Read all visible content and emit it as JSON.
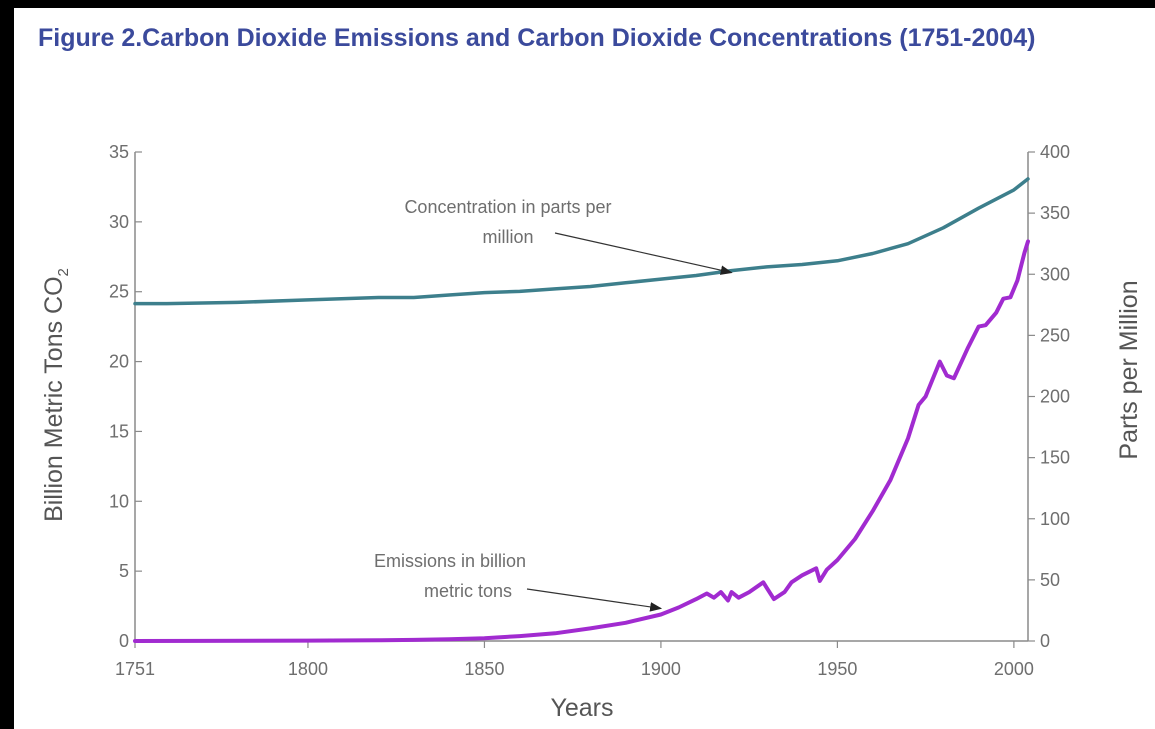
{
  "chart_data": {
    "type": "line",
    "title": "Figure 2.Carbon Dioxide Emissions and Carbon Dioxide Concentrations (1751-2004)",
    "xlabel": "Years",
    "ylabel_left": "Billion Metric Tons CO",
    "ylabel_left_subscript": "2",
    "ylabel_right": "Parts per Million",
    "xlim": [
      1751,
      2004
    ],
    "ylim_left": [
      0,
      35
    ],
    "ylim_right": [
      0,
      400
    ],
    "x_ticks": [
      1751,
      1800,
      1850,
      1900,
      1950,
      2000
    ],
    "y_left_ticks": [
      0,
      5,
      10,
      15,
      20,
      25,
      30,
      35
    ],
    "y_right_ticks": [
      0,
      50,
      100,
      150,
      200,
      250,
      300,
      350,
      400
    ],
    "grid": false,
    "colors": {
      "concentration": "#3d7f8c",
      "emissions": "#a12bd0",
      "title": "#3b4a9c"
    },
    "annotations": [
      {
        "lines": [
          "Concentration in parts per",
          "million"
        ],
        "target_series": "concentration",
        "target_x": 1920
      },
      {
        "lines": [
          "Emissions in billion",
          "metric tons"
        ],
        "target_series": "emissions",
        "target_x": 1900
      }
    ],
    "series": [
      {
        "key": "concentration",
        "axis": "right",
        "points": [
          [
            1751,
            276
          ],
          [
            1760,
            276
          ],
          [
            1780,
            277
          ],
          [
            1800,
            279
          ],
          [
            1820,
            281
          ],
          [
            1830,
            281
          ],
          [
            1840,
            283
          ],
          [
            1850,
            285
          ],
          [
            1860,
            286
          ],
          [
            1870,
            288
          ],
          [
            1880,
            290
          ],
          [
            1890,
            293
          ],
          [
            1900,
            296
          ],
          [
            1910,
            299
          ],
          [
            1920,
            303
          ],
          [
            1930,
            306
          ],
          [
            1940,
            308
          ],
          [
            1950,
            311
          ],
          [
            1960,
            317
          ],
          [
            1970,
            325
          ],
          [
            1980,
            338
          ],
          [
            1990,
            354
          ],
          [
            2000,
            369
          ],
          [
            2004,
            378
          ]
        ]
      },
      {
        "key": "emissions",
        "axis": "left",
        "points": [
          [
            1751,
            0.003
          ],
          [
            1770,
            0.01
          ],
          [
            1800,
            0.03
          ],
          [
            1820,
            0.05
          ],
          [
            1830,
            0.08
          ],
          [
            1840,
            0.12
          ],
          [
            1850,
            0.2
          ],
          [
            1860,
            0.35
          ],
          [
            1870,
            0.55
          ],
          [
            1880,
            0.9
          ],
          [
            1890,
            1.3
          ],
          [
            1900,
            1.9
          ],
          [
            1905,
            2.4
          ],
          [
            1910,
            3.0
          ],
          [
            1913,
            3.4
          ],
          [
            1915,
            3.1
          ],
          [
            1917,
            3.5
          ],
          [
            1919,
            2.9
          ],
          [
            1920,
            3.5
          ],
          [
            1922,
            3.1
          ],
          [
            1925,
            3.5
          ],
          [
            1929,
            4.2
          ],
          [
            1930,
            3.8
          ],
          [
            1932,
            3.0
          ],
          [
            1935,
            3.5
          ],
          [
            1937,
            4.2
          ],
          [
            1940,
            4.7
          ],
          [
            1944,
            5.2
          ],
          [
            1945,
            4.3
          ],
          [
            1947,
            5.1
          ],
          [
            1950,
            5.8
          ],
          [
            1955,
            7.3
          ],
          [
            1960,
            9.3
          ],
          [
            1965,
            11.5
          ],
          [
            1970,
            14.5
          ],
          [
            1973,
            16.9
          ],
          [
            1975,
            17.5
          ],
          [
            1979,
            20.0
          ],
          [
            1981,
            19.0
          ],
          [
            1983,
            18.8
          ],
          [
            1987,
            21.0
          ],
          [
            1990,
            22.5
          ],
          [
            1992,
            22.6
          ],
          [
            1995,
            23.5
          ],
          [
            1997,
            24.5
          ],
          [
            1999,
            24.6
          ],
          [
            2001,
            25.8
          ],
          [
            2003,
            27.8
          ],
          [
            2004,
            28.6
          ]
        ]
      }
    ]
  }
}
